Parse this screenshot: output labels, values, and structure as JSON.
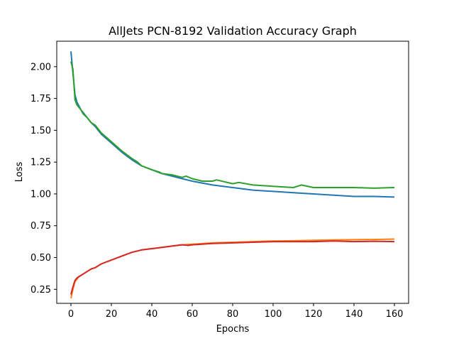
{
  "chart_data": {
    "type": "line",
    "title": "AllJets PCN-8192 Validation Accuracy Graph",
    "xlabel": "Epochs",
    "ylabel": "Loss",
    "xlim": [
      -7,
      167
    ],
    "ylim": [
      0.14,
      2.2
    ],
    "xticks": [
      0,
      20,
      40,
      60,
      80,
      100,
      120,
      140,
      160
    ],
    "yticks": [
      0.25,
      0.5,
      0.75,
      1.0,
      1.25,
      1.5,
      1.75,
      2.0
    ],
    "ytick_labels": [
      "0.25",
      "0.50",
      "0.75",
      "1.00",
      "1.25",
      "1.50",
      "1.75",
      "2.00"
    ],
    "grid": false,
    "legend": "none",
    "series": [
      {
        "color": "#1f77b4",
        "x": [
          0,
          1,
          2,
          3,
          4,
          5,
          6,
          8,
          10,
          12,
          15,
          20,
          25,
          30,
          35,
          40,
          45,
          50,
          55,
          60,
          70,
          80,
          90,
          100,
          110,
          120,
          130,
          140,
          150,
          160
        ],
        "y": [
          2.12,
          1.95,
          1.78,
          1.72,
          1.69,
          1.66,
          1.64,
          1.6,
          1.56,
          1.53,
          1.47,
          1.4,
          1.33,
          1.27,
          1.22,
          1.19,
          1.16,
          1.14,
          1.12,
          1.1,
          1.07,
          1.05,
          1.03,
          1.02,
          1.01,
          1.0,
          0.99,
          0.98,
          0.98,
          0.975
        ]
      },
      {
        "color": "#ff7f0e",
        "x": [
          0,
          1,
          2,
          3,
          4,
          5,
          6,
          8,
          10,
          12,
          15,
          20,
          25,
          30,
          35,
          40,
          45,
          50,
          55,
          60,
          70,
          80,
          90,
          100,
          110,
          120,
          130,
          140,
          150,
          160
        ],
        "y": [
          0.18,
          0.25,
          0.31,
          0.33,
          0.35,
          0.36,
          0.37,
          0.39,
          0.41,
          0.42,
          0.45,
          0.48,
          0.51,
          0.54,
          0.56,
          0.57,
          0.58,
          0.59,
          0.6,
          0.605,
          0.615,
          0.62,
          0.625,
          0.63,
          0.632,
          0.635,
          0.638,
          0.64,
          0.642,
          0.645
        ]
      },
      {
        "color": "#2ca02c",
        "x": [
          0,
          1,
          2,
          3,
          4,
          5,
          6,
          8,
          10,
          12,
          15,
          20,
          25,
          30,
          33,
          35,
          40,
          44,
          45,
          50,
          55,
          57,
          60,
          65,
          70,
          72,
          80,
          83,
          90,
          100,
          110,
          114,
          120,
          130,
          140,
          150,
          160
        ],
        "y": [
          2.04,
          1.98,
          1.74,
          1.7,
          1.68,
          1.66,
          1.63,
          1.6,
          1.56,
          1.54,
          1.48,
          1.41,
          1.34,
          1.28,
          1.25,
          1.22,
          1.19,
          1.17,
          1.16,
          1.15,
          1.13,
          1.14,
          1.12,
          1.1,
          1.1,
          1.11,
          1.08,
          1.09,
          1.07,
          1.06,
          1.05,
          1.07,
          1.05,
          1.05,
          1.05,
          1.045,
          1.05
        ]
      },
      {
        "color": "#d62728",
        "x": [
          0,
          1,
          2,
          3,
          4,
          5,
          6,
          8,
          10,
          12,
          15,
          20,
          25,
          30,
          35,
          40,
          45,
          50,
          55,
          58,
          60,
          70,
          80,
          90,
          100,
          110,
          120,
          130,
          140,
          150,
          160
        ],
        "y": [
          0.21,
          0.27,
          0.32,
          0.34,
          0.35,
          0.36,
          0.37,
          0.39,
          0.41,
          0.42,
          0.45,
          0.48,
          0.51,
          0.54,
          0.56,
          0.57,
          0.58,
          0.59,
          0.6,
          0.595,
          0.6,
          0.61,
          0.615,
          0.62,
          0.625,
          0.625,
          0.625,
          0.63,
          0.625,
          0.628,
          0.625
        ]
      }
    ]
  }
}
